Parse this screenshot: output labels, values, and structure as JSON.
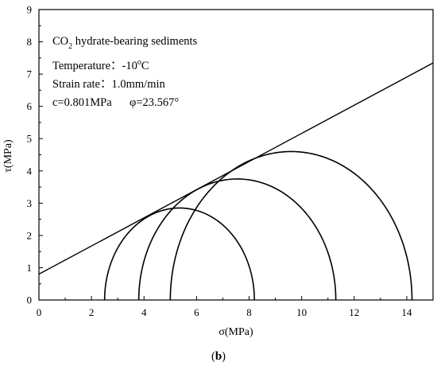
{
  "chart_data": {
    "type": "line",
    "xlabel": "σ(MPa)",
    "ylabel": "τ(MPa)",
    "xlim": [
      0,
      15
    ],
    "ylim": [
      0,
      9
    ],
    "x_ticks": [
      "0",
      "2",
      "4",
      "6",
      "8",
      "10",
      "12",
      "14"
    ],
    "y_ticks": [
      "0",
      "1",
      "2",
      "3",
      "4",
      "5",
      "6",
      "7",
      "8",
      "9"
    ],
    "grid": false,
    "failure_envelope": {
      "intercept": 0.801,
      "angle_deg": 23.567
    },
    "mohr_circles": [
      {
        "sigma3": 2.5,
        "sigma1": 8.2
      },
      {
        "sigma3": 3.8,
        "sigma1": 11.3
      },
      {
        "sigma3": 5.0,
        "sigma1": 14.2
      }
    ],
    "annotations": {
      "title_pre": "CO",
      "title_sub": "2",
      "title_post": " hydrate-bearing sediments",
      "temperature_pre": "Temperature：-10",
      "temperature_sup": "o",
      "temperature_post": "C",
      "strain_rate": "Strain rate：1.0mm/min",
      "cohesion": "c=0.801MPa",
      "friction_angle": "φ=23.567°"
    },
    "panel_label_open": "(",
    "panel_label_letter": "b",
    "panel_label_close": ")"
  }
}
